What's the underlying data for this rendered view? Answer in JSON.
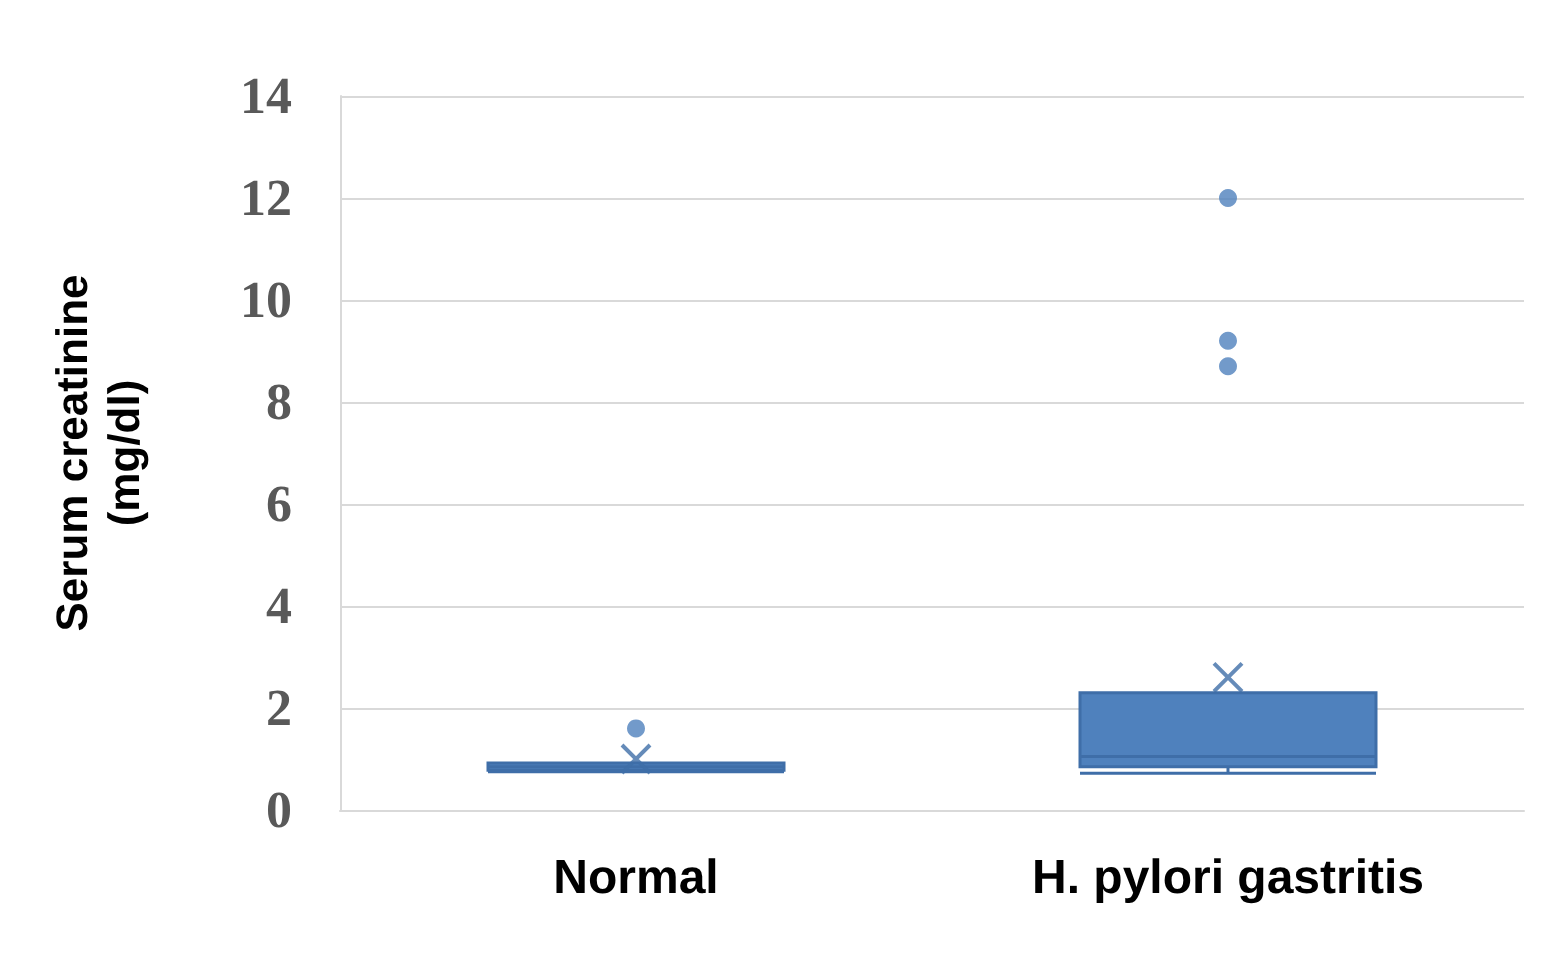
{
  "chart_data": {
    "type": "box",
    "ylabel": "Serum creatinine\n(mg/dl)",
    "categories": [
      "Normal",
      "H. pylori gastritis"
    ],
    "boxes": [
      {
        "low": 0.75,
        "q1": 0.78,
        "median": 0.85,
        "q3": 0.92,
        "high": 0.92,
        "mean": 1.0,
        "outliers": [
          1.6
        ]
      },
      {
        "low": 0.72,
        "q1": 0.85,
        "median": 1.05,
        "q3": 2.3,
        "high": 2.3,
        "mean": 2.6,
        "outliers": [
          8.7,
          9.2,
          12
        ]
      }
    ],
    "color": "#4f81bd",
    "ylim": [
      0,
      14
    ],
    "yticks": [
      0,
      2,
      4,
      6,
      8,
      10,
      12,
      14
    ],
    "grid": "y"
  }
}
